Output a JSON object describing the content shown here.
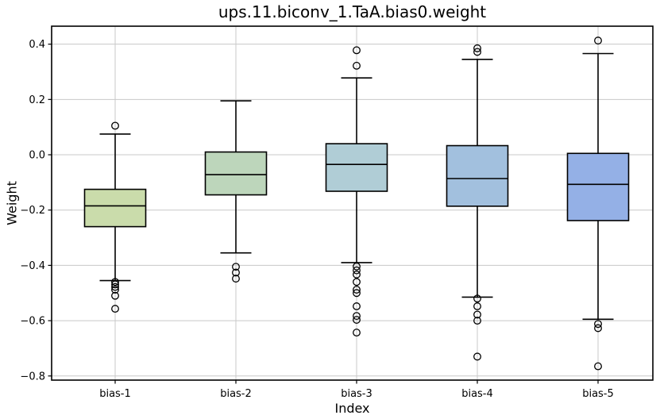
{
  "chart_data": {
    "type": "boxplot",
    "title": "ups.11.biconv_1.TaA.bias0.weight",
    "xlabel": "Index",
    "ylabel": "Weight",
    "categories": [
      "bias-1",
      "bias-2",
      "bias-3",
      "bias-4",
      "bias-5"
    ],
    "ylim": [
      -0.815,
      0.465
    ],
    "yticks": [
      0.4,
      0.2,
      0.0,
      -0.2,
      -0.4,
      -0.6,
      -0.8
    ],
    "grid": true,
    "grid_color": "#c8c8c8",
    "axis_color": "#000000",
    "box_colors": [
      "#cadcab",
      "#bdd6bb",
      "#b0cdd6",
      "#a2c0de",
      "#94b0e6"
    ],
    "series": [
      {
        "name": "bias-1",
        "whisker_low": -0.455,
        "q1": -0.26,
        "median": -0.185,
        "q3": -0.125,
        "whisker_high": 0.075,
        "outliers": [
          0.105,
          -0.46,
          -0.469,
          -0.478,
          -0.488,
          -0.51,
          -0.557
        ]
      },
      {
        "name": "bias-2",
        "whisker_low": -0.355,
        "q1": -0.145,
        "median": -0.072,
        "q3": 0.01,
        "whisker_high": 0.195,
        "outliers": [
          -0.405,
          -0.426,
          -0.448
        ]
      },
      {
        "name": "bias-3",
        "whisker_low": -0.39,
        "q1": -0.132,
        "median": -0.035,
        "q3": 0.04,
        "whisker_high": 0.278,
        "outliers": [
          0.378,
          0.322,
          -0.404,
          -0.418,
          -0.433,
          -0.46,
          -0.488,
          -0.5,
          -0.548,
          -0.583,
          -0.597,
          -0.643
        ]
      },
      {
        "name": "bias-4",
        "whisker_low": -0.515,
        "q1": -0.186,
        "median": -0.086,
        "q3": 0.033,
        "whisker_high": 0.345,
        "outliers": [
          0.385,
          0.372,
          -0.52,
          -0.548,
          -0.578,
          -0.6,
          -0.73
        ]
      },
      {
        "name": "bias-5",
        "whisker_low": -0.595,
        "q1": -0.238,
        "median": -0.107,
        "q3": 0.005,
        "whisker_high": 0.366,
        "outliers": [
          0.413,
          -0.612,
          -0.627,
          -0.765
        ]
      }
    ],
    "legend": null
  }
}
